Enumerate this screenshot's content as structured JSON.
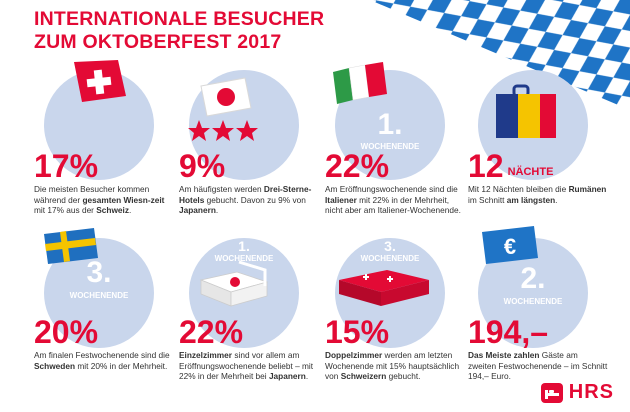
{
  "title": {
    "line1": "INTERNATIONALE BESUCHER",
    "line2": "ZUM OKTOBERFEST 2017"
  },
  "colors": {
    "red": "#e30a35",
    "blue_light": "#c9d6ec",
    "bavarian_blue": "#1f74c6"
  },
  "cards": [
    {
      "stat": "17%",
      "unit": "",
      "overlay": "",
      "overlay2": "",
      "icon": "swiss-flag-icon",
      "desc": [
        [
          "Die meisten Besucher kommen",
          ""
        ],
        [
          "während der ",
          "gesamten Wiesn-"
        ],
        [
          "zeit",
          "",
          " mit 17% aus der "
        ],
        [
          "Schweiz",
          "."
        ]
      ],
      "desc_html": "Die meisten Besucher kommen während der <b>gesamten Wiesn-zeit</b> mit 17% aus der <b>Schweiz</b>."
    },
    {
      "stat": "9%",
      "unit": "",
      "overlay": "",
      "overlay2": "",
      "icon": "japan-flag-stars-icon",
      "desc_html": "Am häufigsten werden <b>Drei-Sterne-Hotels</b> gebucht. Davon zu 9% von <b>Japanern</b>."
    },
    {
      "stat": "22%",
      "unit": "",
      "overlay": "1.",
      "overlay2": "WOCHENENDE",
      "icon": "italy-flag-icon",
      "desc_html": "Am Eröffnungswochenende sind die <b>Italiener</b> mit 22% in der Mehrheit, nicht aber am Italiener-Wochenende."
    },
    {
      "stat": "12",
      "unit": "NÄCHTE",
      "overlay": "",
      "overlay2": "",
      "icon": "suitcase-icon",
      "desc_html": "Mit 12 Nächten bleiben die <b>Rumänen</b> im Schnitt <b>am längsten</b>."
    },
    {
      "stat": "20%",
      "unit": "",
      "overlay": "3.",
      "overlay2": "WOCHENENDE",
      "icon": "sweden-flag-icon",
      "desc_html": "Am finalen Festwochenende sind die <b>Schweden</b> mit 20% in der Mehrheit."
    },
    {
      "stat": "22%",
      "unit": "",
      "overlay": "1.",
      "overlay2": "WOCHENENDE",
      "icon": "single-bed-icon",
      "desc_html": "<b>Einzelzimmer</b> sind vor allem am Eröffnungswochenende beliebt – mit 22% in der Mehrheit bei <b>Japanern</b>."
    },
    {
      "stat": "15%",
      "unit": "",
      "overlay": "3.",
      "overlay2": "WOCHENENDE",
      "icon": "double-bed-icon",
      "desc_html": "<b>Doppelzimmer</b> werden am letzten Wochenende mit 15% hauptsächlich von <b>Schweizern</b> gebucht."
    },
    {
      "stat": "194,–",
      "unit": "",
      "overlay": "2.",
      "overlay2": "WOCHENENDE",
      "icon": "euro-banknote-icon",
      "desc_html": "<b>Das Meiste zahlen</b> Gäste am zweiten Festwochenende – im Schnitt 194,– Euro."
    }
  ],
  "logo": {
    "text": "HRS"
  }
}
